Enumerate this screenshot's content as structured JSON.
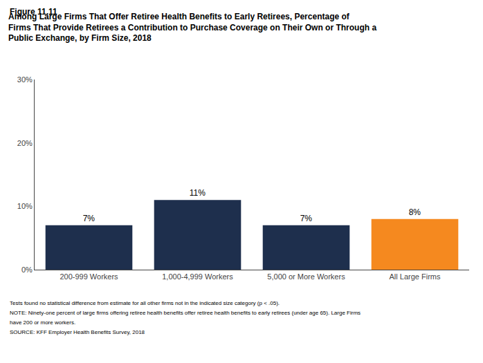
{
  "chart_data": {
    "type": "bar",
    "subtitle": "Figure 11.11",
    "title": "Among Large Firms That Offer Retiree Health Benefits to Early Retirees, Percentage of\nFirms That Provide Retirees a Contribution to Purchase Coverage on Their Own or Through a\nPublic Exchange, by Firm Size, 2018",
    "categories": [
      "200-999 Workers",
      "1,000-4,999 Workers",
      "5,000 or More Workers",
      "All Large Firms"
    ],
    "values": [
      7,
      11,
      7,
      8
    ],
    "value_labels": [
      "7%",
      "11%",
      "7%",
      "8%"
    ],
    "data_labels": true,
    "colors": [
      "#1e2f4d",
      "#1e2f4d",
      "#1e2f4d",
      "#f5891f"
    ],
    "ylim": [
      0,
      30
    ],
    "yticks": [
      {
        "value": 0,
        "label": "0%"
      },
      {
        "value": 10,
        "label": "10%"
      },
      {
        "value": 20,
        "label": "20%"
      },
      {
        "value": 30,
        "label": "30%"
      }
    ],
    "grid": false,
    "annotations": [
      "Tests found no statistical difference from estimate for all other firms not in the indicated size category (p < .05).",
      "NOTE: Ninety-one percent of large firms offering retiree health benefits offer retiree health benefits to early retirees (under age 65). Large Firms",
      "have 200 or more workers.",
      "SOURCE: KFF Employer Health Benefits Survey, 2018"
    ]
  }
}
